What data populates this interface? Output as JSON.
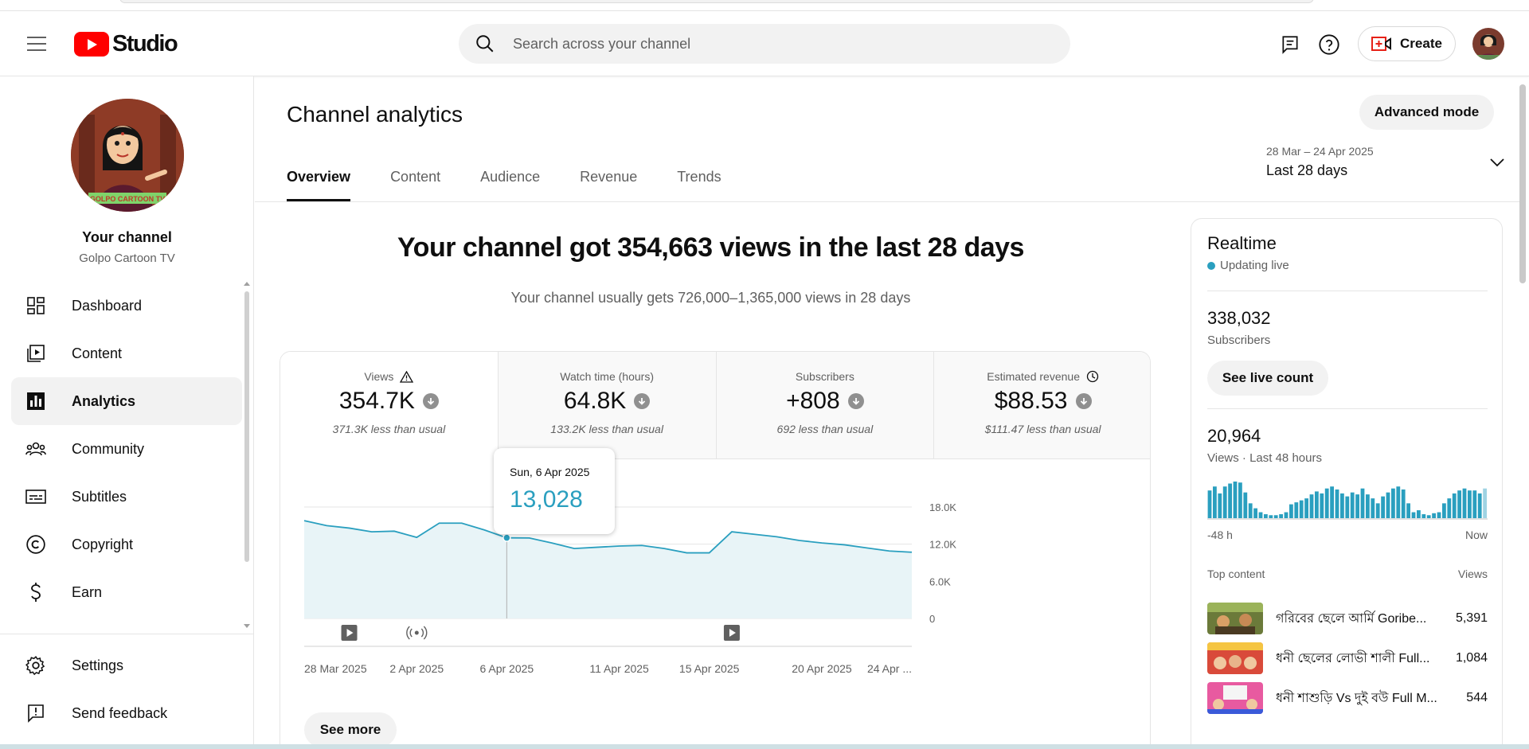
{
  "header": {
    "logo_text": "Studio",
    "search_placeholder": "Search across your channel",
    "create_label": "Create"
  },
  "sidebar": {
    "channel_label": "Your channel",
    "channel_name": "Golpo Cartoon TV",
    "avatar_banner": "GOLPO CARTOON TV",
    "items": [
      {
        "label": "Dashboard",
        "icon": "dashboard-icon"
      },
      {
        "label": "Content",
        "icon": "content-icon"
      },
      {
        "label": "Analytics",
        "icon": "analytics-icon",
        "active": true
      },
      {
        "label": "Community",
        "icon": "community-icon"
      },
      {
        "label": "Subtitles",
        "icon": "subtitles-icon"
      },
      {
        "label": "Copyright",
        "icon": "copyright-icon"
      },
      {
        "label": "Earn",
        "icon": "earn-icon"
      }
    ],
    "bottom_items": [
      {
        "label": "Settings",
        "icon": "gear-icon"
      },
      {
        "label": "Send feedback",
        "icon": "feedback-icon"
      }
    ]
  },
  "main": {
    "title": "Channel analytics",
    "advanced_mode": "Advanced mode",
    "tabs": [
      "Overview",
      "Content",
      "Audience",
      "Revenue",
      "Trends"
    ],
    "active_tab": "Overview",
    "date_range": {
      "range": "28 Mar – 24 Apr 2025",
      "label": "Last 28 days"
    },
    "headline": "Your channel got 354,663 views in the last 28 days",
    "subline": "Your channel usually gets 726,000–1,365,000 views in 28 days",
    "see_more": "See more"
  },
  "metrics": [
    {
      "label": "Views",
      "value": "354.7K",
      "note": "371.3K less than usual",
      "selected": true,
      "icon": "warning-icon"
    },
    {
      "label": "Watch time (hours)",
      "value": "64.8K",
      "note": "133.2K less than usual",
      "selected": false
    },
    {
      "label": "Subscribers",
      "value": "+808",
      "note": "692 less than usual",
      "selected": false
    },
    {
      "label": "Estimated revenue",
      "value": "$88.53",
      "note": "$111.47 less than usual",
      "selected": false,
      "icon": "clock-icon"
    }
  ],
  "tooltip": {
    "date": "Sun, 6 Apr 2025",
    "value": "13,028"
  },
  "chart_data": {
    "type": "area",
    "series": [
      {
        "values": [
          15800,
          15000,
          14600,
          14000,
          14100,
          13100,
          15400,
          15400,
          14300,
          13028,
          13000,
          12200,
          11300,
          11500,
          11700,
          11800,
          11300,
          10600,
          10600,
          14000,
          13600,
          13200,
          12600,
          12200,
          11900,
          11400,
          10900,
          10700
        ]
      }
    ],
    "x_tick_labels": [
      "28 Mar 2025",
      "2 Apr 2025",
      "6 Apr 2025",
      "11 Apr 2025",
      "15 Apr 2025",
      "20 Apr 2025",
      "24 Apr ..."
    ],
    "y_tick_labels": [
      "0",
      "6.0K",
      "12.0K",
      "18.0K"
    ],
    "ylim": [
      0,
      18000
    ],
    "grid": true,
    "color": "#2a9fbf",
    "fill": "#e8f4f7",
    "highlight_index": 9,
    "markers": [
      {
        "index": 2,
        "icon": "play-icon"
      },
      {
        "index": 5,
        "icon": "live-icon"
      },
      {
        "index": 19,
        "icon": "play-icon"
      }
    ]
  },
  "realtime": {
    "title": "Realtime",
    "status": "Updating live",
    "subscribers": "338,032",
    "subscribers_label": "Subscribers",
    "see_live": "See live count",
    "views": "20,964",
    "views_label": "Views · Last 48 hours",
    "axis_start": "-48 h",
    "axis_end": "Now",
    "hourly_views": [
      560,
      640,
      500,
      640,
      700,
      740,
      720,
      520,
      300,
      200,
      120,
      80,
      60,
      60,
      80,
      120,
      280,
      320,
      360,
      400,
      480,
      540,
      500,
      600,
      640,
      580,
      500,
      440,
      520,
      480,
      600,
      480,
      400,
      300,
      440,
      520,
      600,
      640,
      580,
      300,
      120,
      160,
      80,
      60,
      100,
      120,
      300,
      400,
      500,
      560,
      600,
      560,
      560,
      500,
      600
    ],
    "top_content_label": "Top content",
    "top_views_label": "Views",
    "top_content": [
      {
        "title": "গরিবের ছেলে আর্মি Goribe...",
        "views": "5,391"
      },
      {
        "title": "ধনী ছেলের লোভী শালী Full...",
        "views": "1,084"
      },
      {
        "title": "ধনী শাশুড়ি Vs দুই বউ Full M...",
        "views": "544"
      }
    ]
  }
}
